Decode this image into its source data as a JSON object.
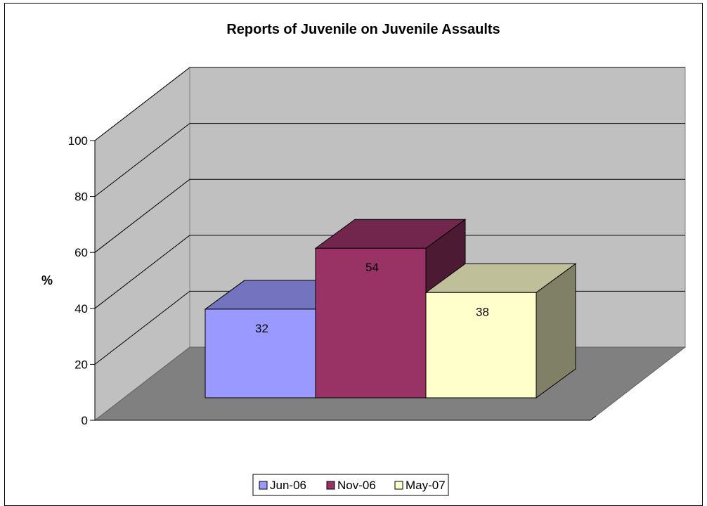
{
  "chart_data": {
    "type": "bar",
    "title": "Reports of Juvenile on Juvenile Assaults",
    "ylabel": "%",
    "xlabel": "",
    "ylim": [
      0,
      100
    ],
    "yticks": [
      0,
      20,
      40,
      60,
      80,
      100
    ],
    "categories": [
      ""
    ],
    "series": [
      {
        "name": "Jun-06",
        "values": [
          32
        ],
        "color": "#9999ff"
      },
      {
        "name": "Nov-06",
        "values": [
          54
        ],
        "color": "#993366"
      },
      {
        "name": "May-07",
        "values": [
          38
        ],
        "color": "#ffffcc"
      }
    ],
    "style": "3d-clustered-column",
    "legend": "bottom",
    "grid": true,
    "wall_color": "#c0c0c0",
    "floor_color": "#808080"
  }
}
